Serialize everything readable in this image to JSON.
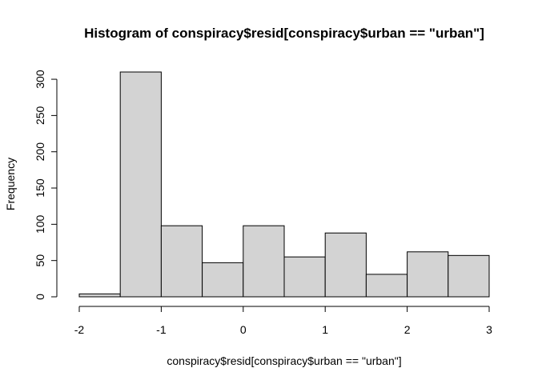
{
  "chart_data": {
    "type": "bar",
    "title": "Histogram of conspiracy$resid[conspiracy$urban == \"urban\"]",
    "xlabel": "conspiracy$resid[conspiracy$urban == \"urban\"]",
    "ylabel": "Frequency",
    "bins": [
      {
        "from": -2.0,
        "to": -1.5,
        "count": 4
      },
      {
        "from": -1.5,
        "to": -1.0,
        "count": 310
      },
      {
        "from": -1.0,
        "to": -0.5,
        "count": 98
      },
      {
        "from": -0.5,
        "to": 0.0,
        "count": 47
      },
      {
        "from": 0.0,
        "to": 0.5,
        "count": 98
      },
      {
        "from": 0.5,
        "to": 1.0,
        "count": 55
      },
      {
        "from": 1.0,
        "to": 1.5,
        "count": 88
      },
      {
        "from": 1.5,
        "to": 2.0,
        "count": 31
      },
      {
        "from": 2.0,
        "to": 2.5,
        "count": 62
      },
      {
        "from": 2.5,
        "to": 3.0,
        "count": 57
      }
    ],
    "xlim": [
      -2,
      3
    ],
    "ylim": [
      0,
      310
    ],
    "x_ticks": [
      -2,
      -1,
      0,
      1,
      2,
      3
    ],
    "y_ticks": [
      0,
      50,
      100,
      150,
      200,
      250,
      300
    ],
    "bar_color": "#d3d3d3",
    "border_color": "#000000",
    "grid": false
  }
}
